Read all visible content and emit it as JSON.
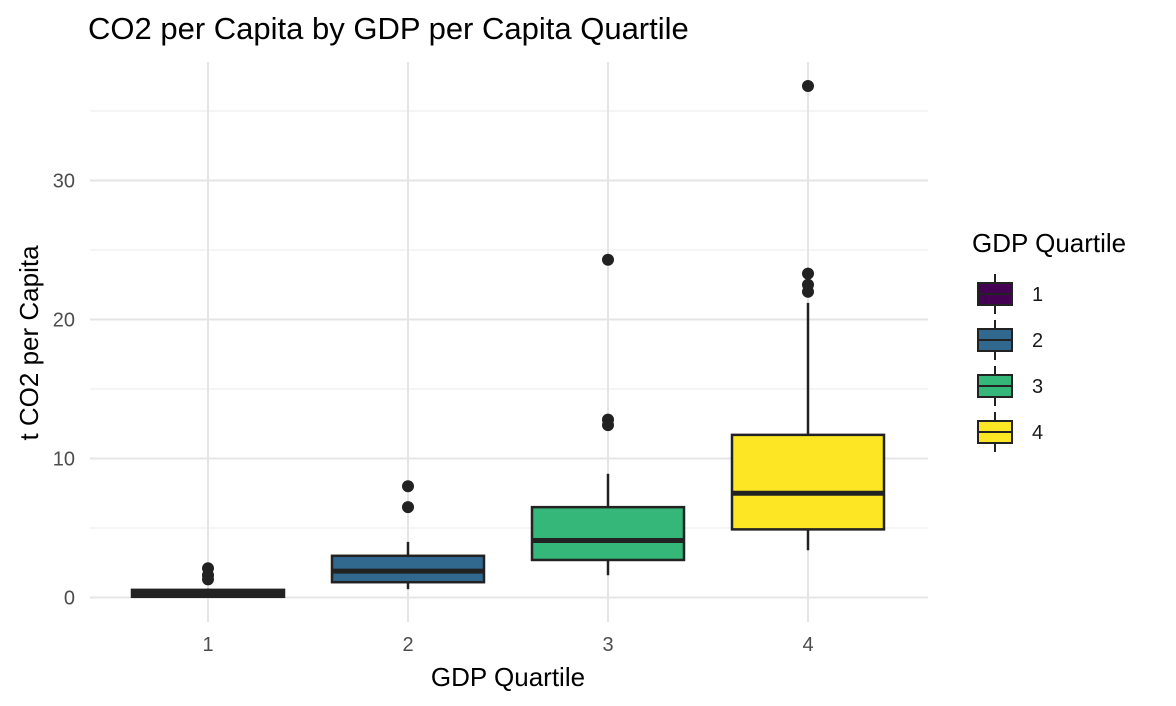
{
  "chart_data": {
    "type": "boxplot",
    "title": "CO2 per Capita by GDP per Capita Quartile",
    "xlabel": "GDP Quartile",
    "ylabel": "t CO2 per Capita",
    "categories": [
      "1",
      "2",
      "3",
      "4"
    ],
    "ylim": [
      -2,
      38.5
    ],
    "yticks": [
      0,
      10,
      20,
      30
    ],
    "grid": true,
    "legend": {
      "title": "GDP Quartile",
      "position": "right",
      "entries": [
        "1",
        "2",
        "3",
        "4"
      ]
    },
    "boxes": [
      {
        "category": "1",
        "fill": "#440154",
        "q1": 0.05,
        "median": 0.3,
        "q3": 0.55,
        "whisker_low": 0.0,
        "whisker_high": 0.65,
        "outliers": [
          1.3,
          1.6,
          2.1
        ]
      },
      {
        "category": "2",
        "fill": "#31688E",
        "q1": 1.1,
        "median": 1.9,
        "q3": 3.0,
        "whisker_low": 0.6,
        "whisker_high": 4.0,
        "outliers": [
          6.5,
          8.0
        ]
      },
      {
        "category": "3",
        "fill": "#35B779",
        "q1": 2.7,
        "median": 4.1,
        "q3": 6.5,
        "whisker_low": 1.6,
        "whisker_high": 8.9,
        "outliers": [
          12.4,
          12.8,
          24.3
        ]
      },
      {
        "category": "4",
        "fill": "#FDE725",
        "q1": 4.9,
        "median": 7.5,
        "q3": 11.7,
        "whisker_low": 3.4,
        "whisker_high": 21.2,
        "outliers": [
          22.0,
          22.5,
          23.3,
          36.8
        ]
      }
    ]
  }
}
